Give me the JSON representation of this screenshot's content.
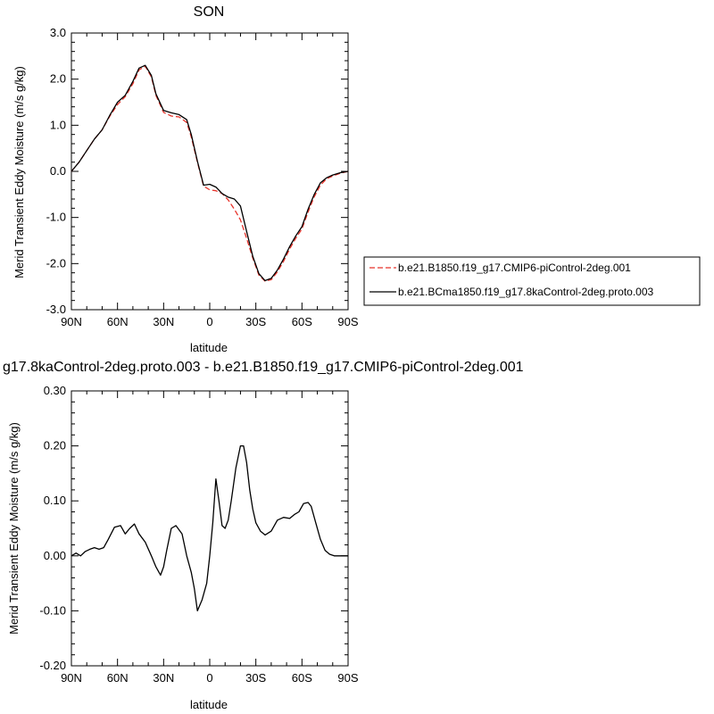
{
  "chart_data": [
    {
      "type": "line",
      "title": "SON",
      "xlabel": "latitude",
      "ylabel": "Merid Transient Eddy Moisture (m/s g/kg)",
      "xlim": [
        90,
        -90
      ],
      "ylim": [
        -3.0,
        3.0
      ],
      "x_tick_values": [
        90,
        60,
        30,
        0,
        -30,
        -60,
        -90
      ],
      "x_tick_labels": [
        "90N",
        "60N",
        "30N",
        "0",
        "30S",
        "60S",
        "90S"
      ],
      "y_tick_values": [
        3.0,
        2.0,
        1.0,
        0.0,
        -1.0,
        -2.0,
        -3.0
      ],
      "y_tick_labels": [
        "3.0",
        "2.0",
        "1.0",
        "0.0",
        "-1.0",
        "-2.0",
        "-3.0"
      ],
      "legend_position": "right",
      "x": [
        90,
        85,
        80,
        75,
        70,
        65,
        60,
        55,
        50,
        46,
        42,
        38,
        35,
        30,
        25,
        20,
        15,
        12,
        8,
        4,
        0,
        -4,
        -8,
        -12,
        -16,
        -20,
        -24,
        -28,
        -32,
        -36,
        -40,
        -44,
        -48,
        -52,
        -56,
        -60,
        -64,
        -68,
        -72,
        -76,
        -80,
        -85,
        -90
      ],
      "series": [
        {
          "name": "b.e21.B1850.f19_g17.CMIP6-piControl-2deg.001",
          "color": "#e8332a",
          "dash": true,
          "values": [
            0.0,
            0.2,
            0.45,
            0.7,
            0.9,
            1.2,
            1.45,
            1.62,
            1.9,
            2.2,
            2.28,
            2.05,
            1.65,
            1.28,
            1.2,
            1.18,
            1.06,
            0.75,
            0.2,
            -0.32,
            -0.4,
            -0.42,
            -0.48,
            -0.62,
            -0.82,
            -1.05,
            -1.45,
            -1.88,
            -2.25,
            -2.38,
            -2.35,
            -2.18,
            -1.95,
            -1.68,
            -1.45,
            -1.25,
            -0.88,
            -0.55,
            -0.3,
            -0.16,
            -0.1,
            -0.04,
            0.0
          ]
        },
        {
          "name": "b.e21.BCma1850.f19_g17.8kaControl-2deg.proto.003",
          "color": "#000000",
          "dash": false,
          "values": [
            0.0,
            0.2,
            0.45,
            0.7,
            0.9,
            1.22,
            1.5,
            1.65,
            1.95,
            2.24,
            2.3,
            2.08,
            1.68,
            1.32,
            1.27,
            1.23,
            1.12,
            0.8,
            0.22,
            -0.3,
            -0.28,
            -0.34,
            -0.48,
            -0.56,
            -0.6,
            -0.75,
            -1.3,
            -1.84,
            -2.22,
            -2.37,
            -2.32,
            -2.14,
            -1.9,
            -1.63,
            -1.4,
            -1.2,
            -0.82,
            -0.5,
            -0.25,
            -0.14,
            -0.08,
            -0.03,
            0.0
          ]
        }
      ]
    },
    {
      "type": "line",
      "title": "g17.8kaControl-2deg.proto.003 - b.e21.B1850.f19_g17.CMIP6-piControl-2deg.001",
      "xlabel": "latitude",
      "ylabel": "Merid Transient Eddy Moisture (m/s g/kg)",
      "xlim": [
        90,
        -90
      ],
      "ylim": [
        -0.2,
        0.3
      ],
      "x_tick_values": [
        90,
        60,
        30,
        0,
        -30,
        -60,
        -90
      ],
      "x_tick_labels": [
        "90N",
        "60N",
        "30N",
        "0",
        "30S",
        "60S",
        "90S"
      ],
      "y_tick_values": [
        0.3,
        0.2,
        0.1,
        0.0,
        -0.1,
        -0.2
      ],
      "y_tick_labels": [
        "0.30",
        "0.20",
        "0.10",
        "0.00",
        "-0.10",
        "-0.20"
      ],
      "x": [
        90,
        87,
        84,
        81,
        78,
        75,
        72,
        69,
        66,
        62,
        58,
        55,
        52,
        49,
        46,
        42,
        38,
        35,
        32,
        30,
        28,
        25,
        22,
        18,
        15,
        12,
        10,
        8,
        5,
        2,
        0,
        -2,
        -4,
        -6,
        -8,
        -10,
        -12,
        -14,
        -17,
        -20,
        -22,
        -24,
        -26,
        -28,
        -30,
        -33,
        -36,
        -40,
        -44,
        -48,
        -52,
        -55,
        -58,
        -61,
        -64,
        -66,
        -69,
        -72,
        -75,
        -78,
        -81,
        -84,
        -87,
        -90
      ],
      "series": [
        {
          "color": "#000000",
          "values": [
            0.0,
            0.005,
            0.0,
            0.008,
            0.012,
            0.015,
            0.012,
            0.015,
            0.03,
            0.052,
            0.055,
            0.04,
            0.05,
            0.058,
            0.04,
            0.025,
            0.0,
            -0.02,
            -0.035,
            -0.02,
            0.01,
            0.05,
            0.055,
            0.04,
            0.0,
            -0.03,
            -0.06,
            -0.1,
            -0.08,
            -0.05,
            0.0,
            0.06,
            0.14,
            0.1,
            0.055,
            0.05,
            0.065,
            0.1,
            0.16,
            0.2,
            0.2,
            0.17,
            0.12,
            0.085,
            0.06,
            0.045,
            0.038,
            0.045,
            0.065,
            0.07,
            0.068,
            0.075,
            0.08,
            0.095,
            0.097,
            0.09,
            0.06,
            0.03,
            0.01,
            0.003,
            0.0,
            0.0,
            0.0,
            0.0
          ]
        }
      ]
    }
  ]
}
